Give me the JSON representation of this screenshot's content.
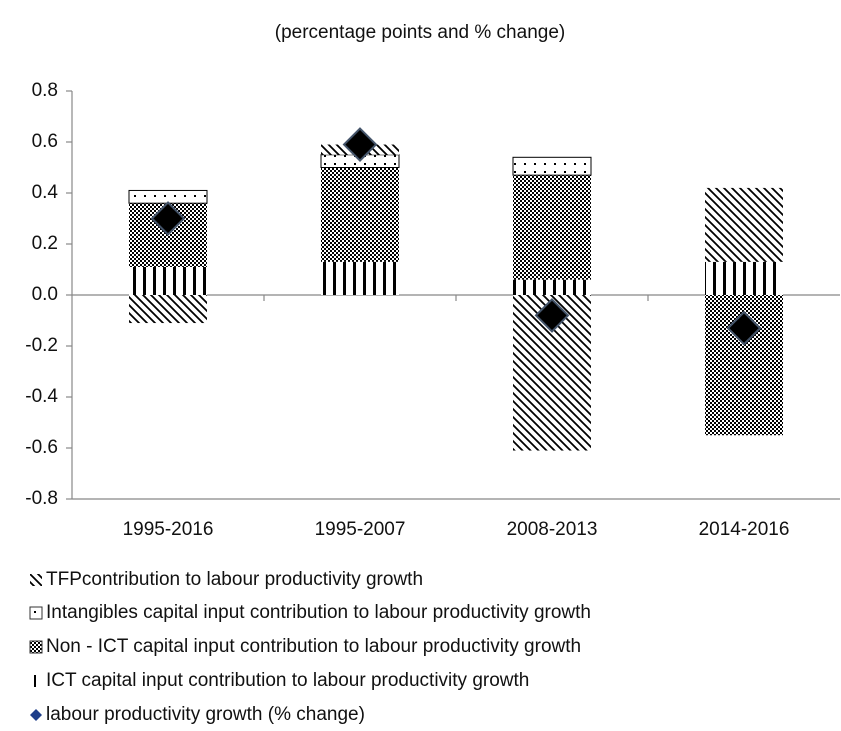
{
  "chart_data": {
    "type": "bar",
    "stacked": true,
    "subtitle": "(percentage points and % change)",
    "categories": [
      "1995-2016",
      "1995-2007",
      "2008-2013",
      "2014-2016"
    ],
    "series": [
      {
        "name": "TFPcontribution to labour productivity growth",
        "pattern": "diagonal",
        "color": "#000000",
        "values": [
          -0.11,
          0.04,
          -0.61,
          0.29
        ]
      },
      {
        "name": "Intangibles capital input contribution to labour productivity growth",
        "pattern": "dots",
        "color": "#000000",
        "values": [
          0.05,
          0.05,
          0.07,
          0
        ]
      },
      {
        "name": "Non - ICT capital input contribution to labour productivity growth",
        "pattern": "checker",
        "color": "#000000",
        "values": [
          0.25,
          0.37,
          0.41,
          -0.55
        ]
      },
      {
        "name": "ICT capital input contribution to labour productivity growth",
        "pattern": "vertical",
        "color": "#000000",
        "values": [
          0.11,
          0.13,
          0.06,
          0.13
        ]
      },
      {
        "name": "labour productivity growth (% change)",
        "type": "marker",
        "color": "#000000",
        "edge": "#44546a",
        "values": [
          0.3,
          0.59,
          -0.08,
          -0.13
        ]
      }
    ],
    "ylim": [
      -0.8,
      0.8
    ],
    "yticks": [
      0.8,
      0.6,
      0.4,
      0.2,
      {
        "value": 0,
        "label": "0.0"
      },
      -0.2,
      -0.4,
      -0.6,
      -0.8
    ]
  }
}
